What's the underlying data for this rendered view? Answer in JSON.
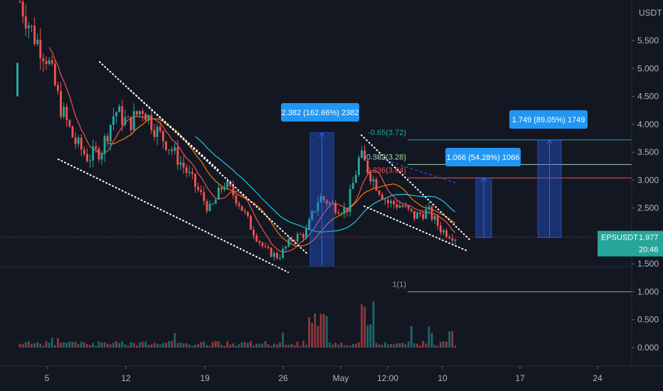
{
  "chart_data": {
    "type": "candlestick",
    "symbol": "EPSUSDT",
    "currency_label": "USDT",
    "last_price": 1.977,
    "last_price_label": "1.977",
    "countdown": "20:46",
    "y_ticks": [
      5.5,
      5.0,
      4.5,
      4.0,
      3.5,
      3.0,
      2.5,
      1.5,
      1.0,
      0.5,
      0.0
    ],
    "y_tick_labels": [
      "5.500",
      "5.000",
      "4.500",
      "4.000",
      "3.500",
      "3.000",
      "2.500",
      "1.500",
      "1.000",
      "0.500",
      "0.000"
    ],
    "x_tick_labels": [
      "5",
      "12",
      "19",
      "26",
      "May",
      "12:00",
      "10",
      "17",
      "24"
    ],
    "price_path": [
      6.2,
      5.6,
      5.2,
      4.3,
      3.7,
      3.4,
      3.55,
      4.25,
      4.0,
      4.3,
      3.9,
      3.6,
      3.25,
      2.85,
      2.45,
      2.95,
      2.65,
      2.15,
      1.75,
      1.62,
      1.95,
      2.05,
      2.7,
      2.55,
      2.45,
      3.45,
      3.0,
      2.6,
      2.55,
      2.35,
      2.45,
      2.1,
      1.98
    ],
    "fib_levels": [
      {
        "label": "-0.65(3.72)",
        "value": 3.72,
        "color": "#26a69a"
      },
      {
        "label": "-0.382(3.28)",
        "value": 3.28,
        "color": "#a5d6a7"
      },
      {
        "label": "0.236(3.04)",
        "value": 3.04,
        "color": "#ef5350"
      },
      {
        "label": "1(1)",
        "value": 1.0,
        "color": "#9598a1"
      }
    ],
    "measure_boxes": [
      {
        "label": "2.382 (162.66%) 2382",
        "from": 1.45,
        "to": 3.85
      },
      {
        "label": "1.066 (54.28%) 1066",
        "from": 1.97,
        "to": 3.04
      },
      {
        "label": "1.749 (89.05%) 1749",
        "from": 1.97,
        "to": 3.72
      }
    ],
    "grid": false
  }
}
